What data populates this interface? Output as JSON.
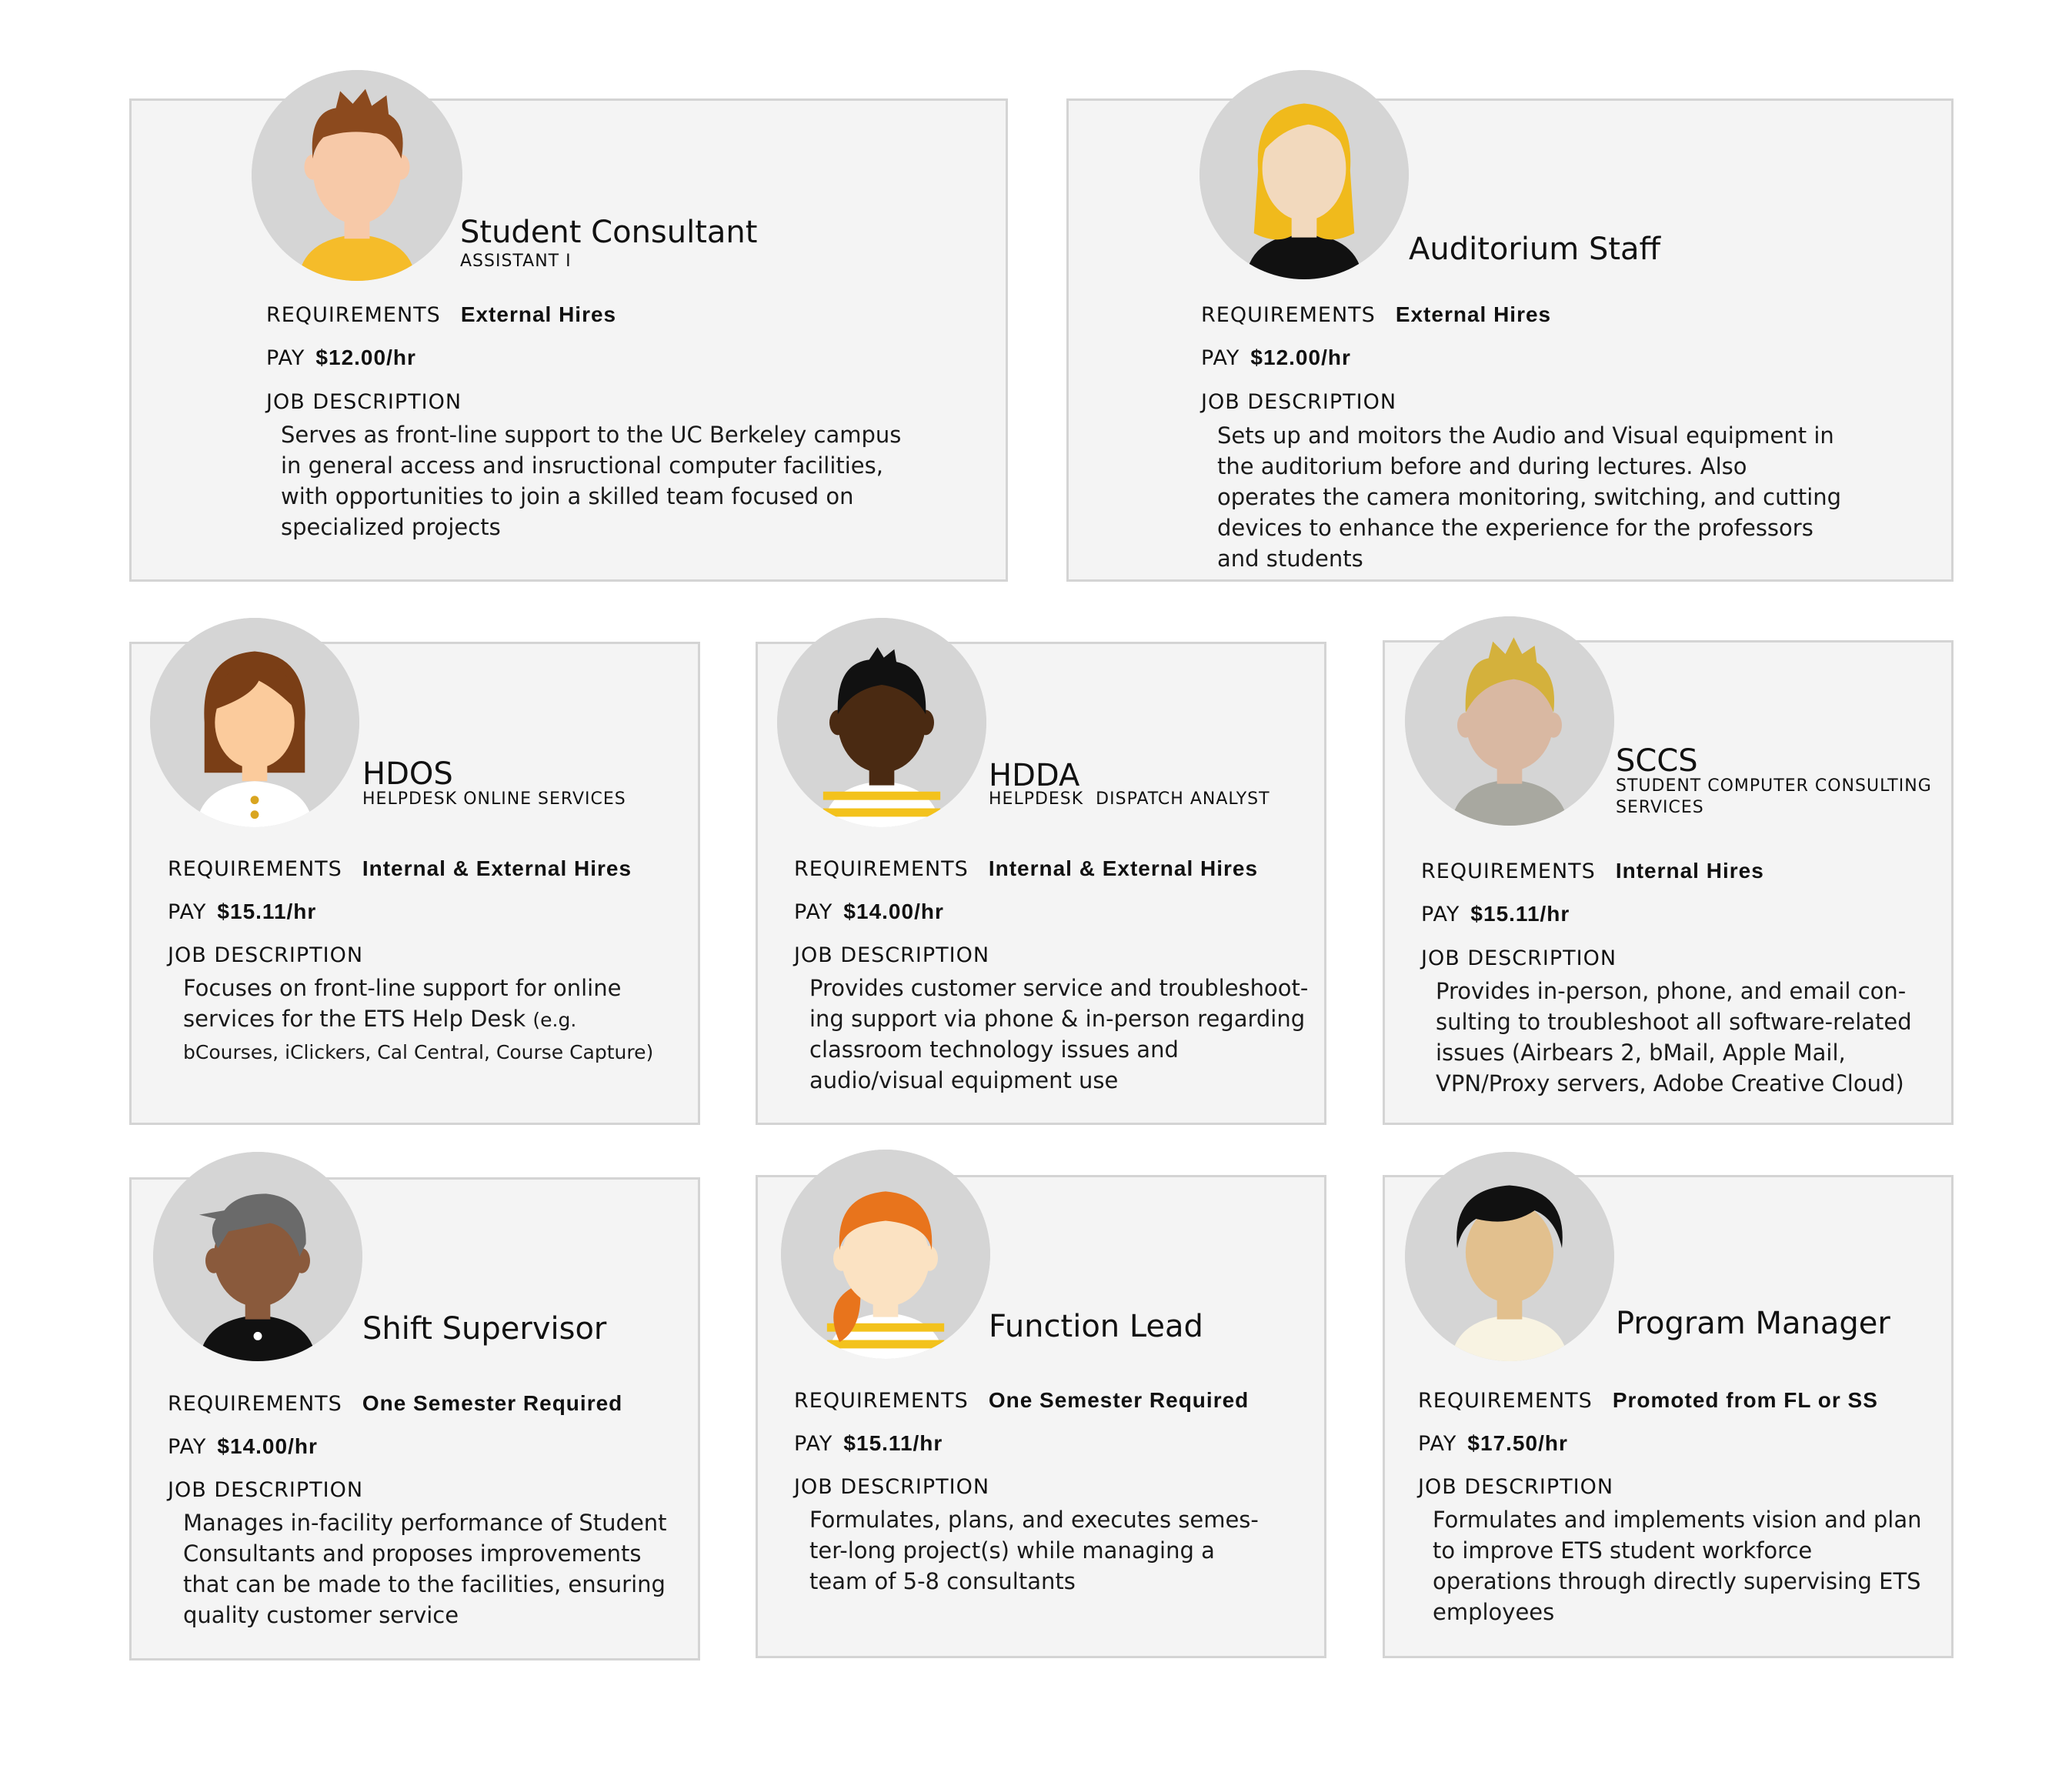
{
  "labels": {
    "requirements": "REQUIREMENTS",
    "pay": "PAY",
    "job_description": "JOB DESCRIPTION"
  },
  "cards": [
    {
      "title": "Student Consultant",
      "subtitle": "ASSISTANT I",
      "requirements": "External Hires",
      "pay": "$12.00/hr",
      "description": "Serves as front-line support to the UC Berkeley campus in general access and insructional computer facilities, with opportunities to join a skilled team focused on specialized projects",
      "avatar_icon": "person-brown-spiky-hair-icon"
    },
    {
      "title": "Auditorium Staff",
      "subtitle": "",
      "requirements": "External Hires",
      "pay": "$12.00/hr",
      "description": "Sets up and moitors the Audio and Visual equipment in the auditorium before and during lectures. Also operates the camera monitoring, switching, and cutting devices to enhance the experience for the professors and students",
      "avatar_icon": "person-blonde-long-hair-icon"
    },
    {
      "title": "HDOS",
      "subtitle": "HELPDESK ONLINE SERVICES",
      "requirements": "Internal & External Hires",
      "pay": "$15.11/hr",
      "description": "Focuses on front-line support for online services for the ETS Help Desk",
      "description_small": "(e.g. bCourses, iClickers, Cal Central, Course Capture)",
      "avatar_icon": "person-brown-bob-hair-icon"
    },
    {
      "title": "HDDA",
      "subtitle": "HELPDESK  DISPATCH ANALYST",
      "requirements": "Internal & External Hires",
      "pay": "$14.00/hr",
      "description": "Provides customer service and troubleshoot- ing support via phone & in-person  regarding classroom technology issues and audio/visual equipment use",
      "avatar_icon": "person-dark-skin-short-hair-icon"
    },
    {
      "title": "SCCS",
      "subtitle": "STUDENT COMPUTER CONSULTING SERVICES",
      "requirements": "Internal Hires",
      "pay": "$15.11/hr",
      "description": "Provides in-person, phone, and email con- sulting to troubleshoot all software-related issues (Airbears 2, bMail, Apple Mail, VPN/Proxy servers, Adobe Creative Cloud)",
      "avatar_icon": "person-blonde-spiky-hair-icon"
    },
    {
      "title": "Shift Supervisor",
      "subtitle": "",
      "requirements": "One Semester Required",
      "pay": "$14.00/hr",
      "description": "Manages in-facility performance of Student Consultants and proposes improvements that can be made to the facilities, ensuring quality customer service",
      "avatar_icon": "person-gray-hair-icon"
    },
    {
      "title": "Function Lead",
      "subtitle": "",
      "requirements": "One Semester Required",
      "pay": "$15.11/hr",
      "description": "Formulates, plans, and executes semes- ter-long project(s) while managing a team of 5-8 consultants",
      "avatar_icon": "person-orange-ponytail-icon"
    },
    {
      "title": "Program Manager",
      "subtitle": "",
      "requirements": "Promoted from FL or SS",
      "pay": "$17.50/hr",
      "description": "Formulates and implements vision and plan to improve ETS student workforce operations through directly supervising ETS employees",
      "avatar_icon": "person-black-hair-icon"
    }
  ]
}
